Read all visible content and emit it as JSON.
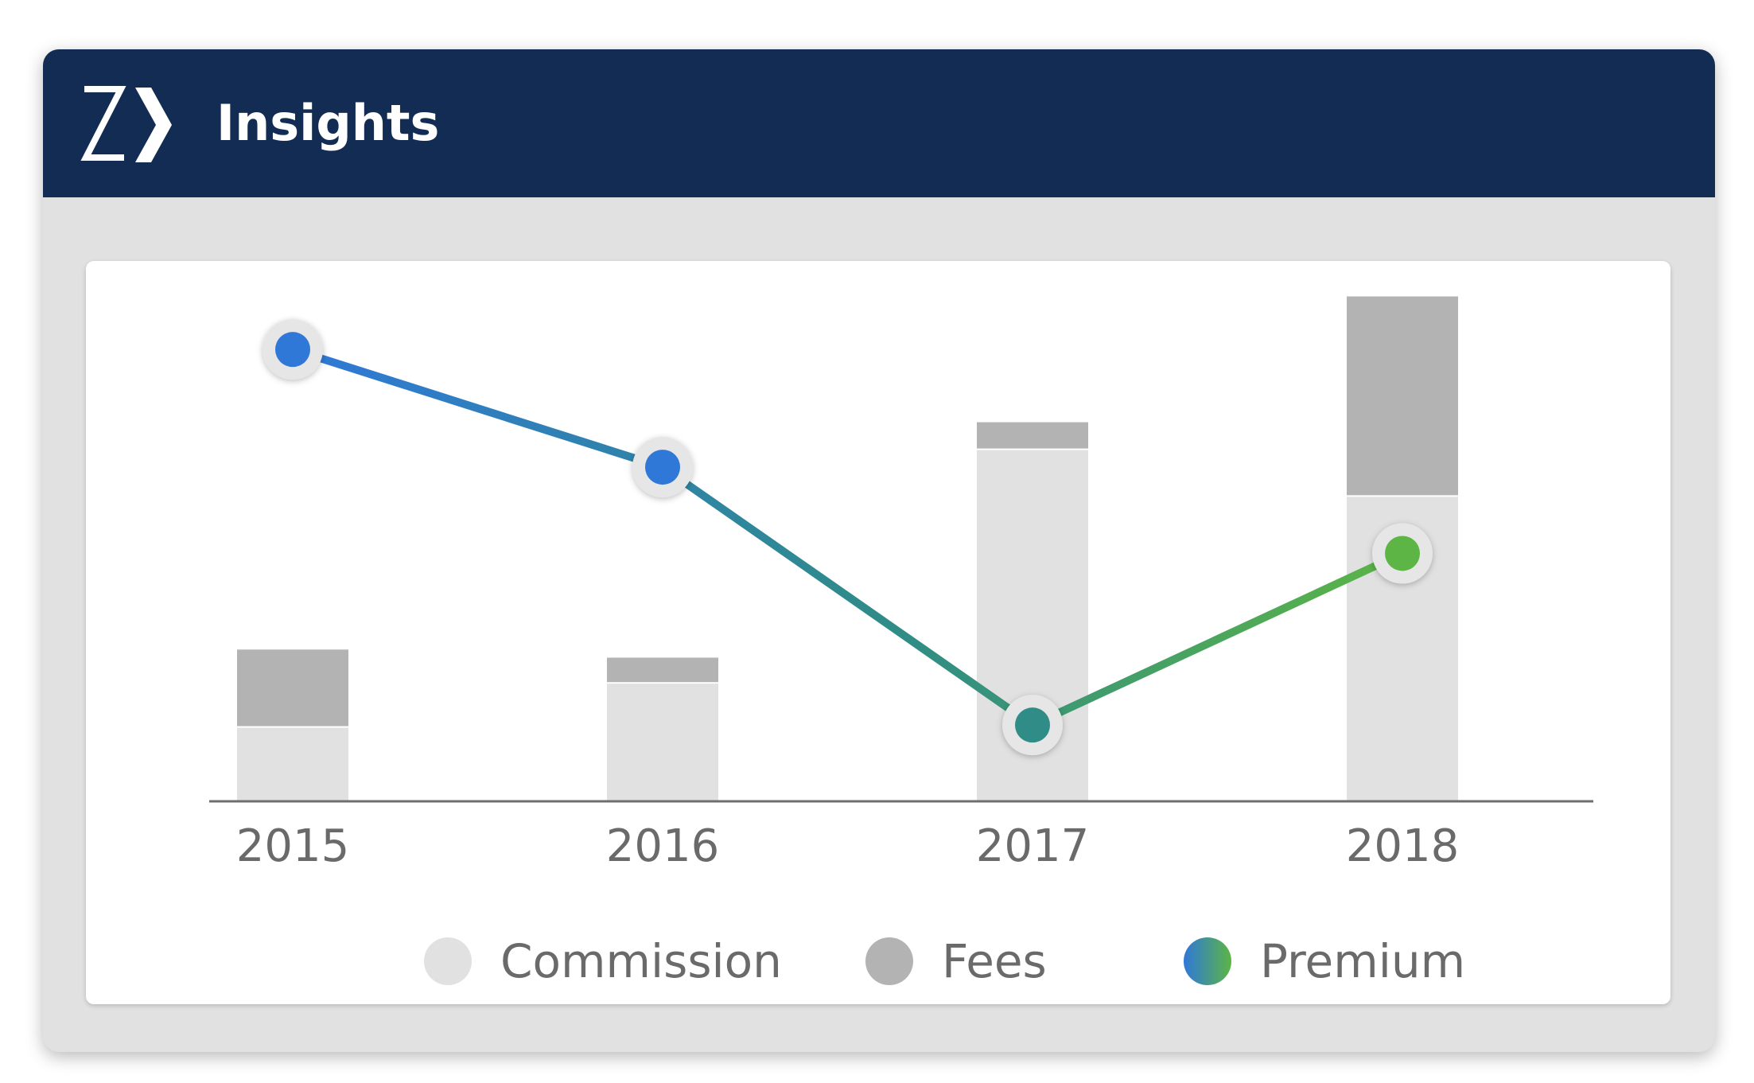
{
  "header": {
    "title": "Insights",
    "logo_icon": "zywave-logo-icon"
  },
  "colors": {
    "header_bg": "#132c54",
    "commission": "#e1e1e1",
    "fees": "#b3b3b3",
    "premium_start": "#2f78d8",
    "premium_mid": "#2f8c86",
    "premium_end": "#5cb545"
  },
  "chart_data": {
    "type": "bar",
    "categories": [
      "2015",
      "2016",
      "2017",
      "2018"
    ],
    "stacked": true,
    "series": [
      {
        "name": "Commission",
        "type": "bar",
        "values": [
          81,
          130,
          390,
          338
        ]
      },
      {
        "name": "Fees",
        "type": "bar",
        "values": [
          87,
          29,
          31,
          223
        ]
      },
      {
        "name": "Premium",
        "type": "line",
        "values": [
          502,
          371,
          84,
          275
        ]
      }
    ],
    "ylim": [
      0,
      565
    ],
    "title": "",
    "xlabel": "",
    "ylabel": "",
    "grid": false,
    "legend_position": "bottom"
  },
  "legend": {
    "items": [
      {
        "label": "Commission"
      },
      {
        "label": "Fees"
      },
      {
        "label": "Premium"
      }
    ]
  }
}
